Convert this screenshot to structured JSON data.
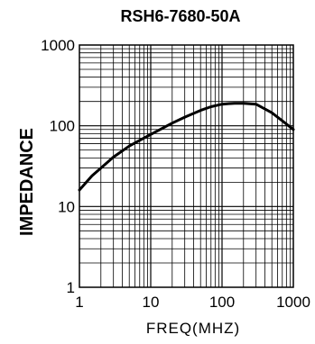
{
  "chart_data": {
    "type": "line",
    "title": "RSH6-7680-50A",
    "xlabel": "FREQ(MHZ)",
    "ylabel": "IMPEDANCE",
    "x_scale": "log",
    "y_scale": "log",
    "xlim": [
      1,
      1000
    ],
    "ylim": [
      1,
      1000
    ],
    "x_ticks": [
      "1",
      "10",
      "100",
      "1000"
    ],
    "y_ticks": [
      "1",
      "10",
      "100",
      "1000"
    ],
    "grid": true,
    "legend": "none",
    "line_color": "#000000",
    "series": [
      {
        "x": [
          1,
          1.5,
          2,
          3,
          5,
          7,
          10,
          20,
          30,
          50,
          70,
          100,
          150,
          200,
          300,
          500,
          700,
          1000
        ],
        "y": [
          16,
          24,
          30,
          41,
          56,
          66,
          78,
          108,
          128,
          155,
          172,
          185,
          190,
          190,
          185,
          145,
          115,
          90
        ]
      }
    ]
  }
}
